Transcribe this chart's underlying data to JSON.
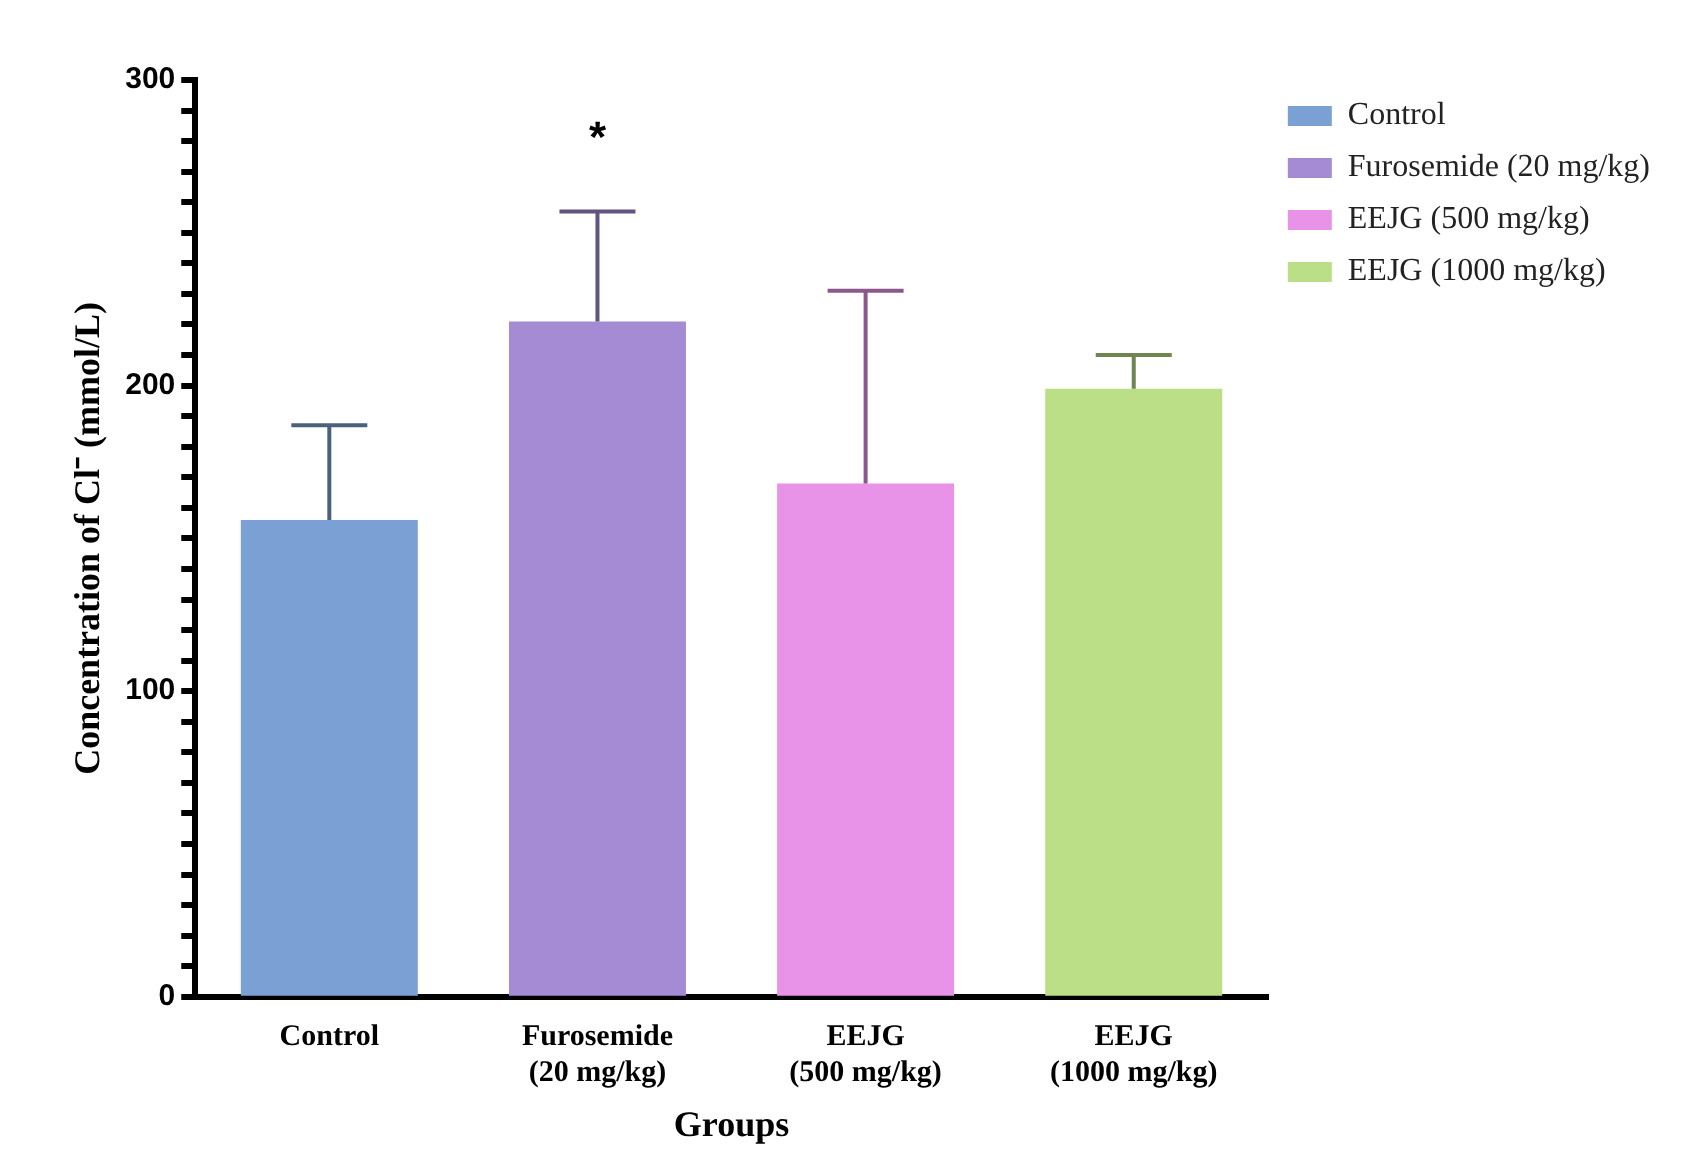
{
  "chart_data": {
    "type": "bar",
    "xlabel": "Groups",
    "ylabel": "Concentration of Cl⁻ (mmol/L)",
    "categories": [
      "Control",
      "Furosemide (20 mg/kg)",
      "EEJG (500 mg/kg)",
      "EEJG (1000 mg/kg)"
    ],
    "series": [
      {
        "name": "Control",
        "color": "#7aa0d4",
        "values": [
          156,
          null,
          null,
          null
        ],
        "errors": [
          [
            156,
            187
          ],
          null,
          null,
          null
        ]
      },
      {
        "name": "Furosemide (20 mg/kg)",
        "color": "#a58ad4",
        "values": [
          null,
          221,
          null,
          null
        ],
        "errors": [
          null,
          [
            221,
            257
          ],
          null,
          null
        ]
      },
      {
        "name": "EEJG (500 mg/kg)",
        "color": "#e893e8",
        "values": [
          null,
          null,
          168,
          null
        ],
        "errors": [
          null,
          null,
          [
            168,
            231
          ],
          null
        ]
      },
      {
        "name": "EEJG (1000 mg/kg)",
        "color": "#bbdf86",
        "values": [
          null,
          null,
          null,
          199
        ],
        "errors": [
          null,
          null,
          null,
          [
            199,
            210
          ]
        ]
      }
    ],
    "ylim": [
      0,
      300
    ],
    "yticks": [
      0,
      {
        "value": 10,
        "label": null
      },
      {
        "value": 20,
        "label": null
      },
      {
        "value": 30,
        "label": null
      },
      {
        "value": 40,
        "label": null
      },
      {
        "value": 50,
        "label": null
      },
      {
        "value": 60,
        "label": null
      },
      {
        "value": 70,
        "label": null
      },
      {
        "value": 80,
        "label": null
      },
      {
        "value": 90,
        "label": null
      },
      100,
      {
        "value": 110,
        "label": null
      },
      {
        "value": 120,
        "label": null
      },
      {
        "value": 130,
        "label": null
      },
      {
        "value": 140,
        "label": null
      },
      {
        "value": 150,
        "label": null
      },
      {
        "value": 160,
        "label": null
      },
      {
        "value": 170,
        "label": null
      },
      {
        "value": 180,
        "label": null
      },
      {
        "value": 190,
        "label": null
      },
      200,
      {
        "value": 210,
        "label": null
      },
      {
        "value": 220,
        "label": null
      },
      {
        "value": 230,
        "label": null
      },
      {
        "value": 240,
        "label": null
      },
      {
        "value": 250,
        "label": null
      },
      {
        "value": 260,
        "label": null
      },
      {
        "value": 270,
        "label": null
      },
      {
        "value": 280,
        "label": null
      },
      {
        "value": 290,
        "label": null
      },
      300
    ],
    "annotations": [
      "*"
    ],
    "grid": false,
    "legend": "top right"
  }
}
